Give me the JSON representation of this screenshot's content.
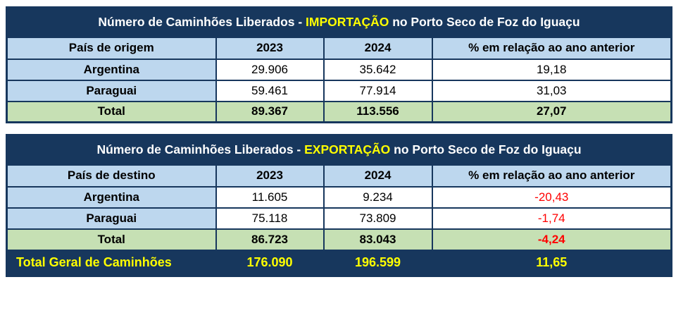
{
  "colors": {
    "navy": "#17375D",
    "light_blue": "#BDD7EE",
    "green": "#C6E0B4",
    "yellow": "#FFFF00",
    "red": "#FF0000",
    "white": "#FFFFFF"
  },
  "import_table": {
    "title": {
      "prefix": "Número de Caminhões Liberados - ",
      "highlight": "IMPORTAÇÃO",
      "suffix": " no Porto Seco de Foz do Iguaçu"
    },
    "headers": {
      "country": "País de origem",
      "y2023": "2023",
      "y2024": "2024",
      "pct": "% em relação ao ano anterior"
    },
    "rows": [
      {
        "country": "Argentina",
        "y2023": "29.906",
        "y2024": "35.642",
        "pct": "19,18"
      },
      {
        "country": "Paraguai",
        "y2023": "59.461",
        "y2024": "77.914",
        "pct": "31,03"
      }
    ],
    "total": {
      "label": "Total",
      "y2023": "89.367",
      "y2024": "113.556",
      "pct": "27,07"
    }
  },
  "export_table": {
    "title": {
      "prefix": "Número de Caminhões Liberados - ",
      "highlight": "EXPORTAÇÃO",
      "suffix": " no Porto Seco de Foz do Iguaçu"
    },
    "headers": {
      "country": "País de destino",
      "y2023": "2023",
      "y2024": "2024",
      "pct": "% em relação ao ano anterior"
    },
    "rows": [
      {
        "country": "Argentina",
        "y2023": "11.605",
        "y2024": "9.234",
        "pct": "-20,43"
      },
      {
        "country": "Paraguai",
        "y2023": "75.118",
        "y2024": "73.809",
        "pct": "-1,74"
      }
    ],
    "total": {
      "label": "Total",
      "y2023": "86.723",
      "y2024": "83.043",
      "pct": "-4,24"
    }
  },
  "grand_total": {
    "label": "Total Geral de Caminhões",
    "y2023": "176.090",
    "y2024": "196.599",
    "pct": "11,65"
  }
}
